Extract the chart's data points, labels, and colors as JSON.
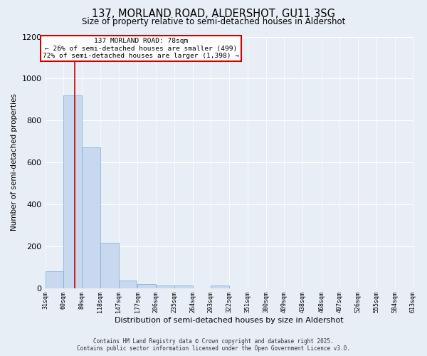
{
  "title": "137, MORLAND ROAD, ALDERSHOT, GU11 3SG",
  "subtitle": "Size of property relative to semi-detached houses in Aldershot",
  "xlabel": "Distribution of semi-detached houses by size in Aldershot",
  "ylabel": "Number of semi-detached properties",
  "bar_values": [
    80,
    920,
    670,
    215,
    35,
    20,
    12,
    12,
    0,
    12,
    0,
    0,
    0,
    0,
    0,
    0,
    0,
    0,
    0,
    0
  ],
  "bin_labels": [
    "31sqm",
    "60sqm",
    "89sqm",
    "118sqm",
    "147sqm",
    "177sqm",
    "206sqm",
    "235sqm",
    "264sqm",
    "293sqm",
    "322sqm",
    "351sqm",
    "380sqm",
    "409sqm",
    "438sqm",
    "468sqm",
    "497sqm",
    "526sqm",
    "555sqm",
    "584sqm",
    "613sqm"
  ],
  "bin_edges": [
    31,
    60,
    89,
    118,
    147,
    177,
    206,
    235,
    264,
    293,
    322,
    351,
    380,
    409,
    438,
    468,
    497,
    526,
    555,
    584,
    613
  ],
  "bar_color": "#c8d8ee",
  "bar_edge_color": "#7aabcf",
  "red_line_x": 78,
  "ylim": [
    0,
    1200
  ],
  "annotation_title": "137 MORLAND ROAD: 78sqm",
  "annotation_line1": "← 26% of semi-detached houses are smaller (499)",
  "annotation_line2": "72% of semi-detached houses are larger (1,398) →",
  "annotation_box_color": "#ffffff",
  "annotation_box_edge": "#cc0000",
  "footer1": "Contains HM Land Registry data © Crown copyright and database right 2025.",
  "footer2": "Contains public sector information licensed under the Open Government Licence v3.0.",
  "background_color": "#e8eef5",
  "grid_color": "#ffffff"
}
